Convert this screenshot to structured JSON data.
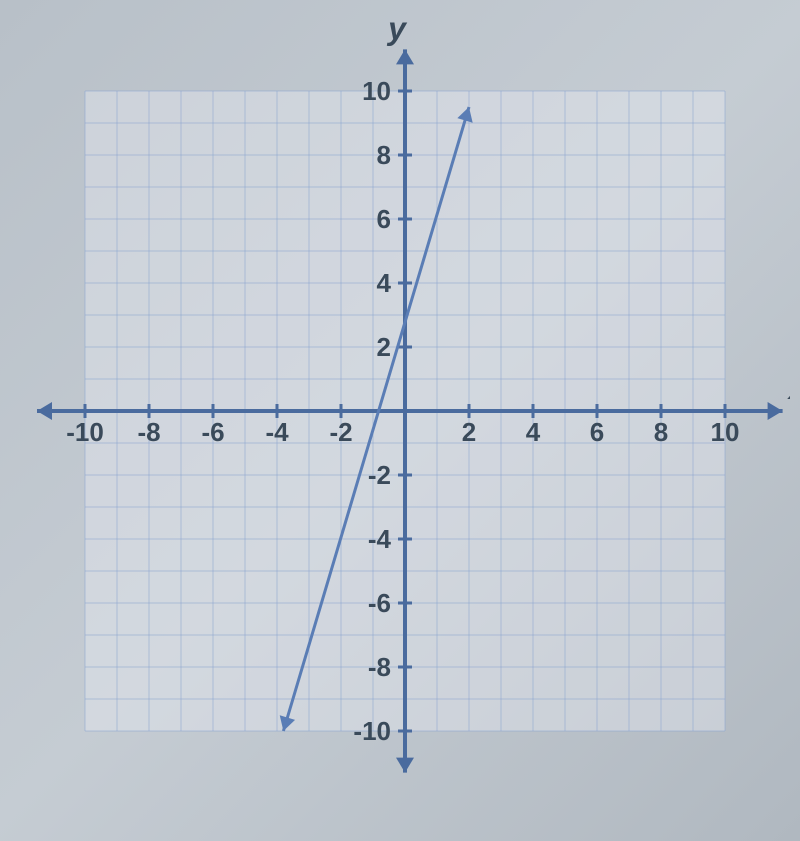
{
  "chart": {
    "type": "line",
    "background_color": "#c5ccd4",
    "grid_background": "#e8ecf2",
    "grid_color": "#8ba5d0",
    "axis_color": "#4a6b9e",
    "line_color": "#5a7db5",
    "text_color": "#3a4a5a",
    "xlim": [
      -10,
      10
    ],
    "ylim": [
      -10,
      10
    ],
    "xlabel": "x",
    "ylabel": "y",
    "axis_label_fontsize": 32,
    "tick_label_fontsize": 26,
    "x_tick_labels": [
      "-10",
      "-8",
      "-6",
      "-4",
      "-2",
      "2",
      "4",
      "6",
      "8",
      "10"
    ],
    "x_tick_positions": [
      -10,
      -8,
      -6,
      -4,
      -2,
      2,
      4,
      6,
      8,
      10
    ],
    "y_tick_labels": [
      "10",
      "8",
      "6",
      "4",
      "2",
      "-2",
      "-4",
      "-6",
      "-8",
      "-10"
    ],
    "y_tick_positions": [
      10,
      8,
      6,
      4,
      2,
      -2,
      -4,
      -6,
      -8,
      -10
    ],
    "grid_step": 1,
    "line_points": [
      {
        "x": -3.8,
        "y": -10
      },
      {
        "x": 2,
        "y": 9.5
      }
    ],
    "grid_visible_range": {
      "xmin": -10,
      "xmax": 10,
      "ymin_top": 10,
      "ymin_bottom": -10
    }
  }
}
